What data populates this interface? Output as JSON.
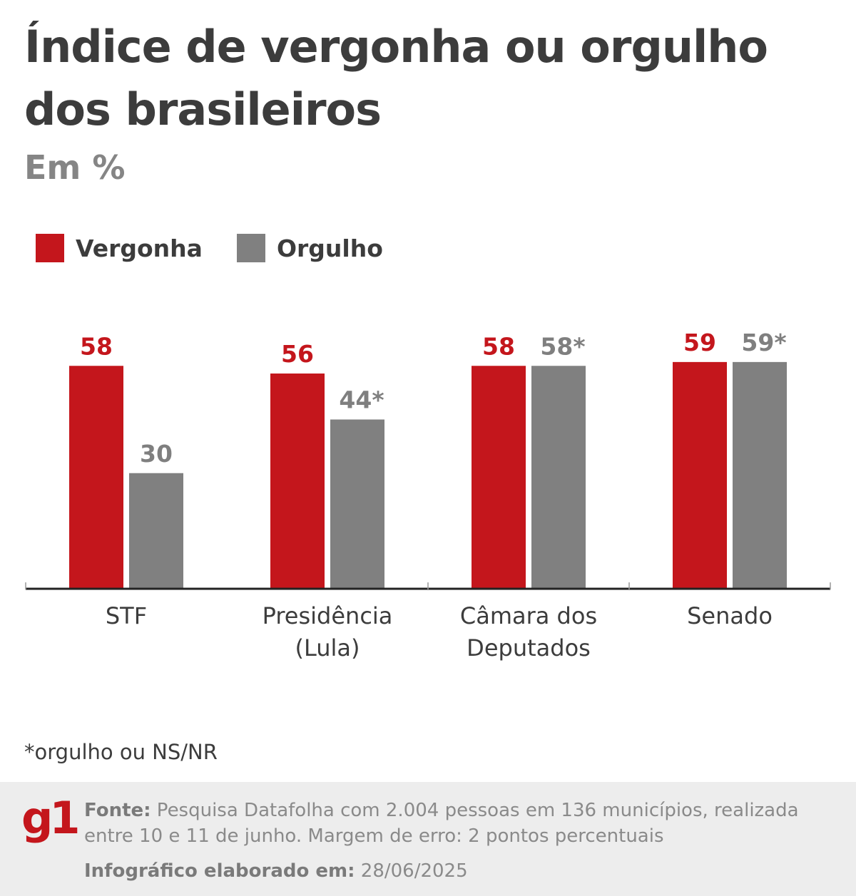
{
  "chart_data": {
    "type": "bar",
    "title": "Índice de vergonha ou orgulho dos brasileiros",
    "subtitle": "Em %",
    "categories": [
      [
        "STF"
      ],
      [
        "Presidência",
        "(Lula)"
      ],
      [
        "Câmara dos",
        "Deputados"
      ],
      [
        "Senado"
      ]
    ],
    "series": [
      {
        "name": "Vergonha",
        "color": "#c4161c",
        "values": [
          58,
          56,
          58,
          59
        ],
        "labels": [
          "58",
          "56",
          "58",
          "59"
        ]
      },
      {
        "name": "Orgulho",
        "color": "#808080",
        "values": [
          30,
          44,
          58,
          59
        ],
        "labels": [
          "30",
          "44*",
          "58*",
          "59*"
        ]
      }
    ],
    "ylim": [
      0,
      60
    ],
    "grid": false,
    "legend": "top-left"
  },
  "note": "*orgulho ou NS/NR",
  "footer": {
    "logo": "g1",
    "source_label": "Fonte:",
    "source_text": " Pesquisa Datafolha com 2.004 pessoas em 136 municípios, realizada entre 10 e 11 de junho. Margem de erro: 2 pontos percentuais",
    "date_label": "Infográfico elaborado em:",
    "date_value": " 28/06/2025"
  }
}
